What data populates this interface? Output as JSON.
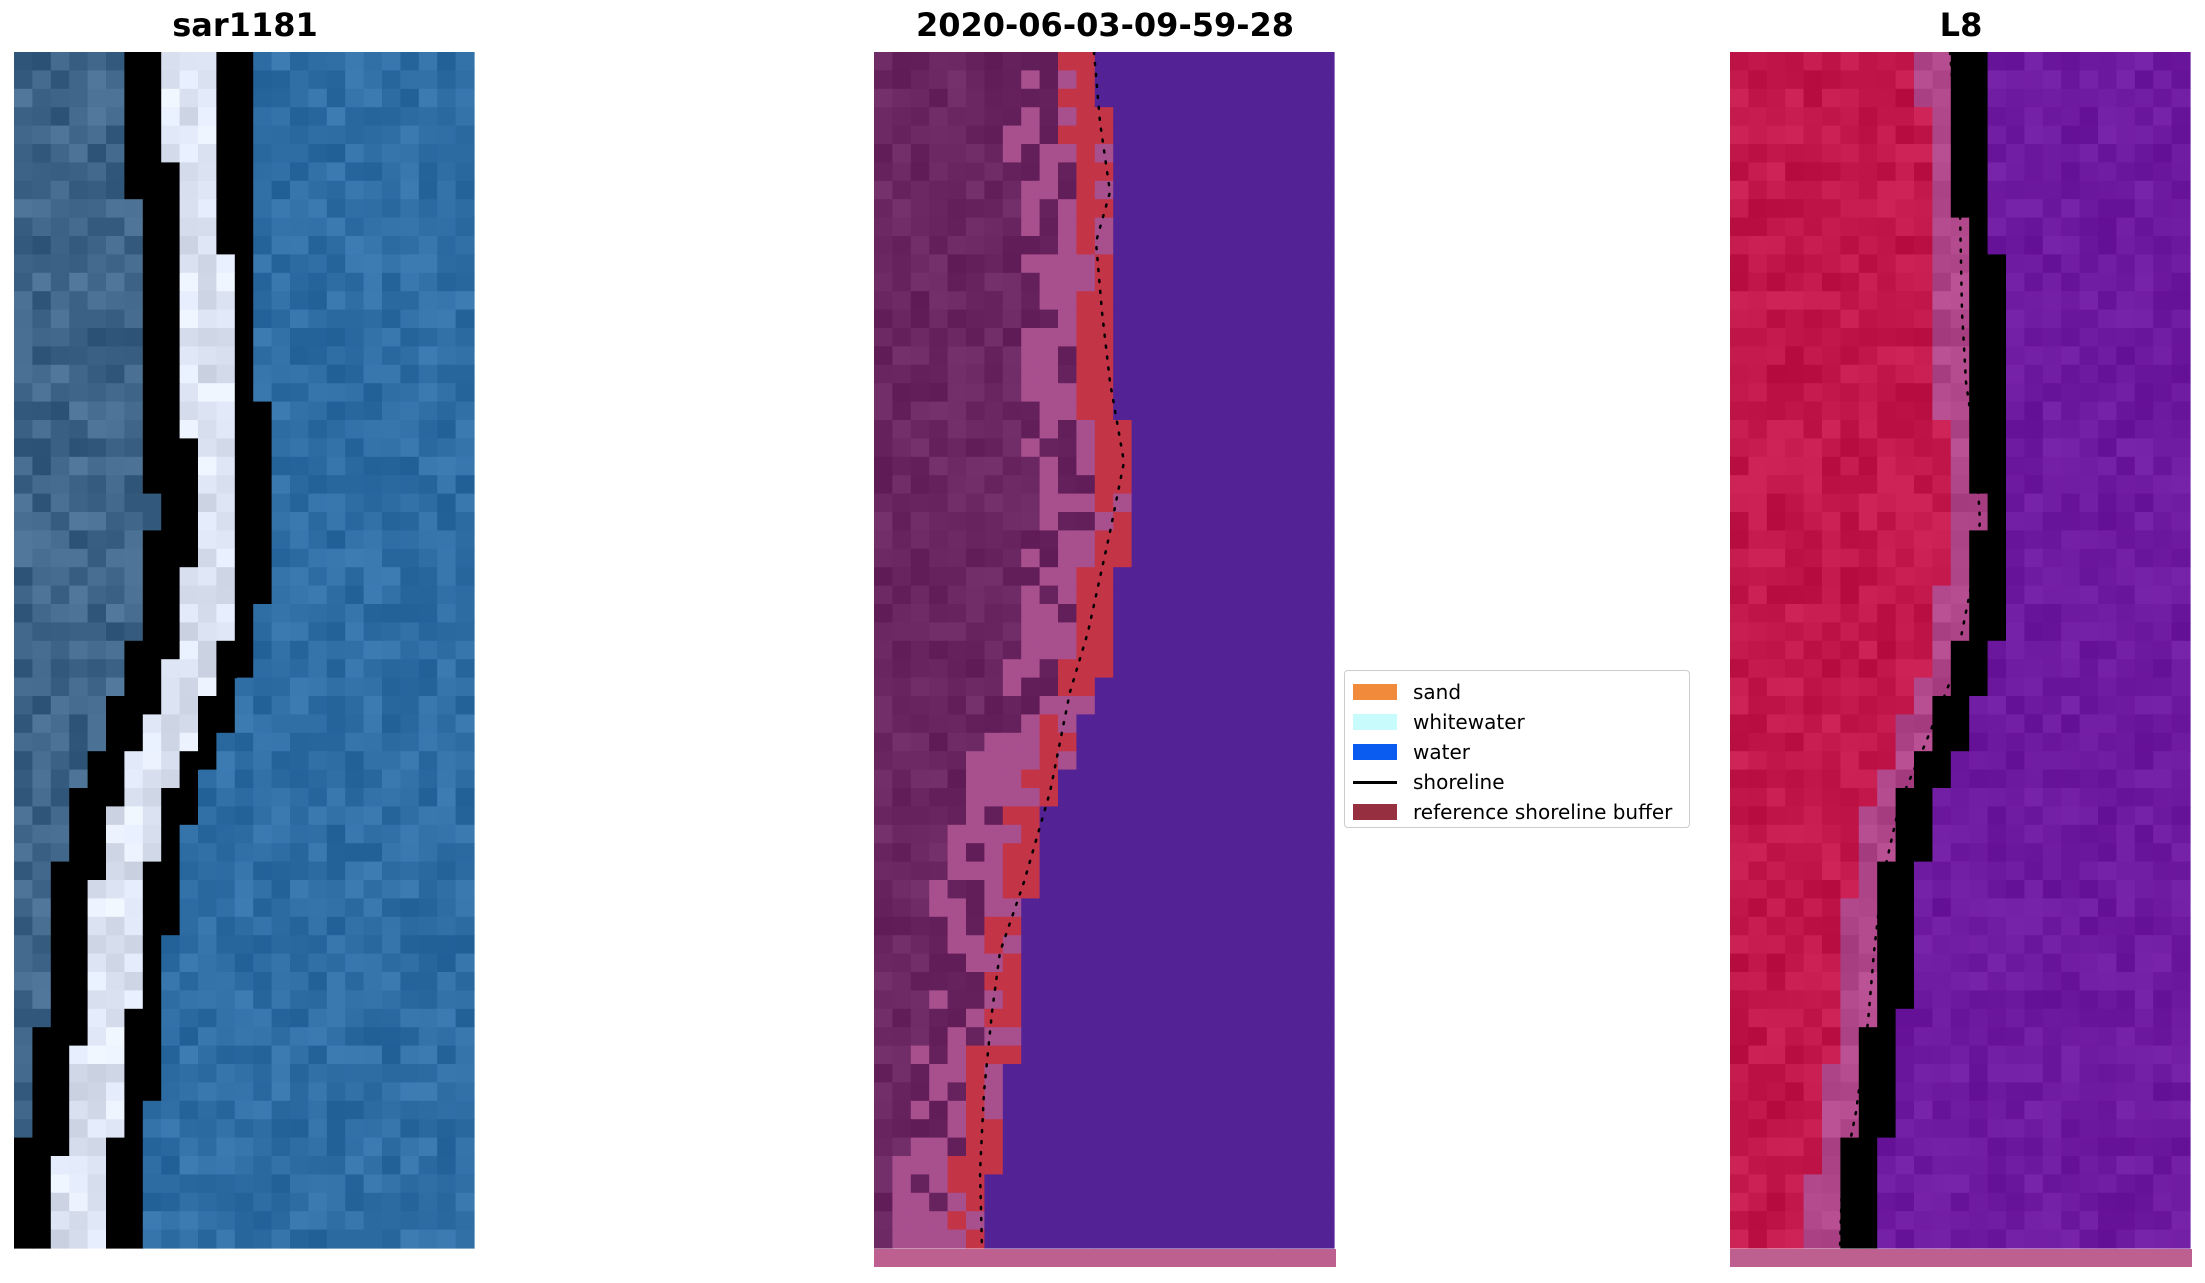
{
  "panels": [
    {
      "title": "sar1181"
    },
    {
      "title": "2020-06-03-09-59-28"
    },
    {
      "title": "L8"
    }
  ],
  "legend": {
    "items": [
      {
        "label": "sand",
        "color": "#f28a3c"
      },
      {
        "label": "whitewater",
        "color": "#c8fbfb"
      },
      {
        "label": "water",
        "color": "#0a5cf0"
      },
      {
        "label": "shoreline",
        "color": "#000000"
      },
      {
        "label": "reference shoreline buffer",
        "color": "#963041"
      }
    ]
  },
  "colors": {
    "rgb_land": "#3f6688",
    "rgb_water": "#2f6ea5",
    "rgb_surf": "#dde4f4",
    "class_land": "#6a2660",
    "class_beach": "#a84f8e",
    "class_buffer": "#c43447",
    "class_water": "#532395",
    "class_strip": "#bd5f8f",
    "l8_land": "#c2174a",
    "l8_water": "#6e1aa0",
    "l8_transition": "#b0468a"
  }
}
